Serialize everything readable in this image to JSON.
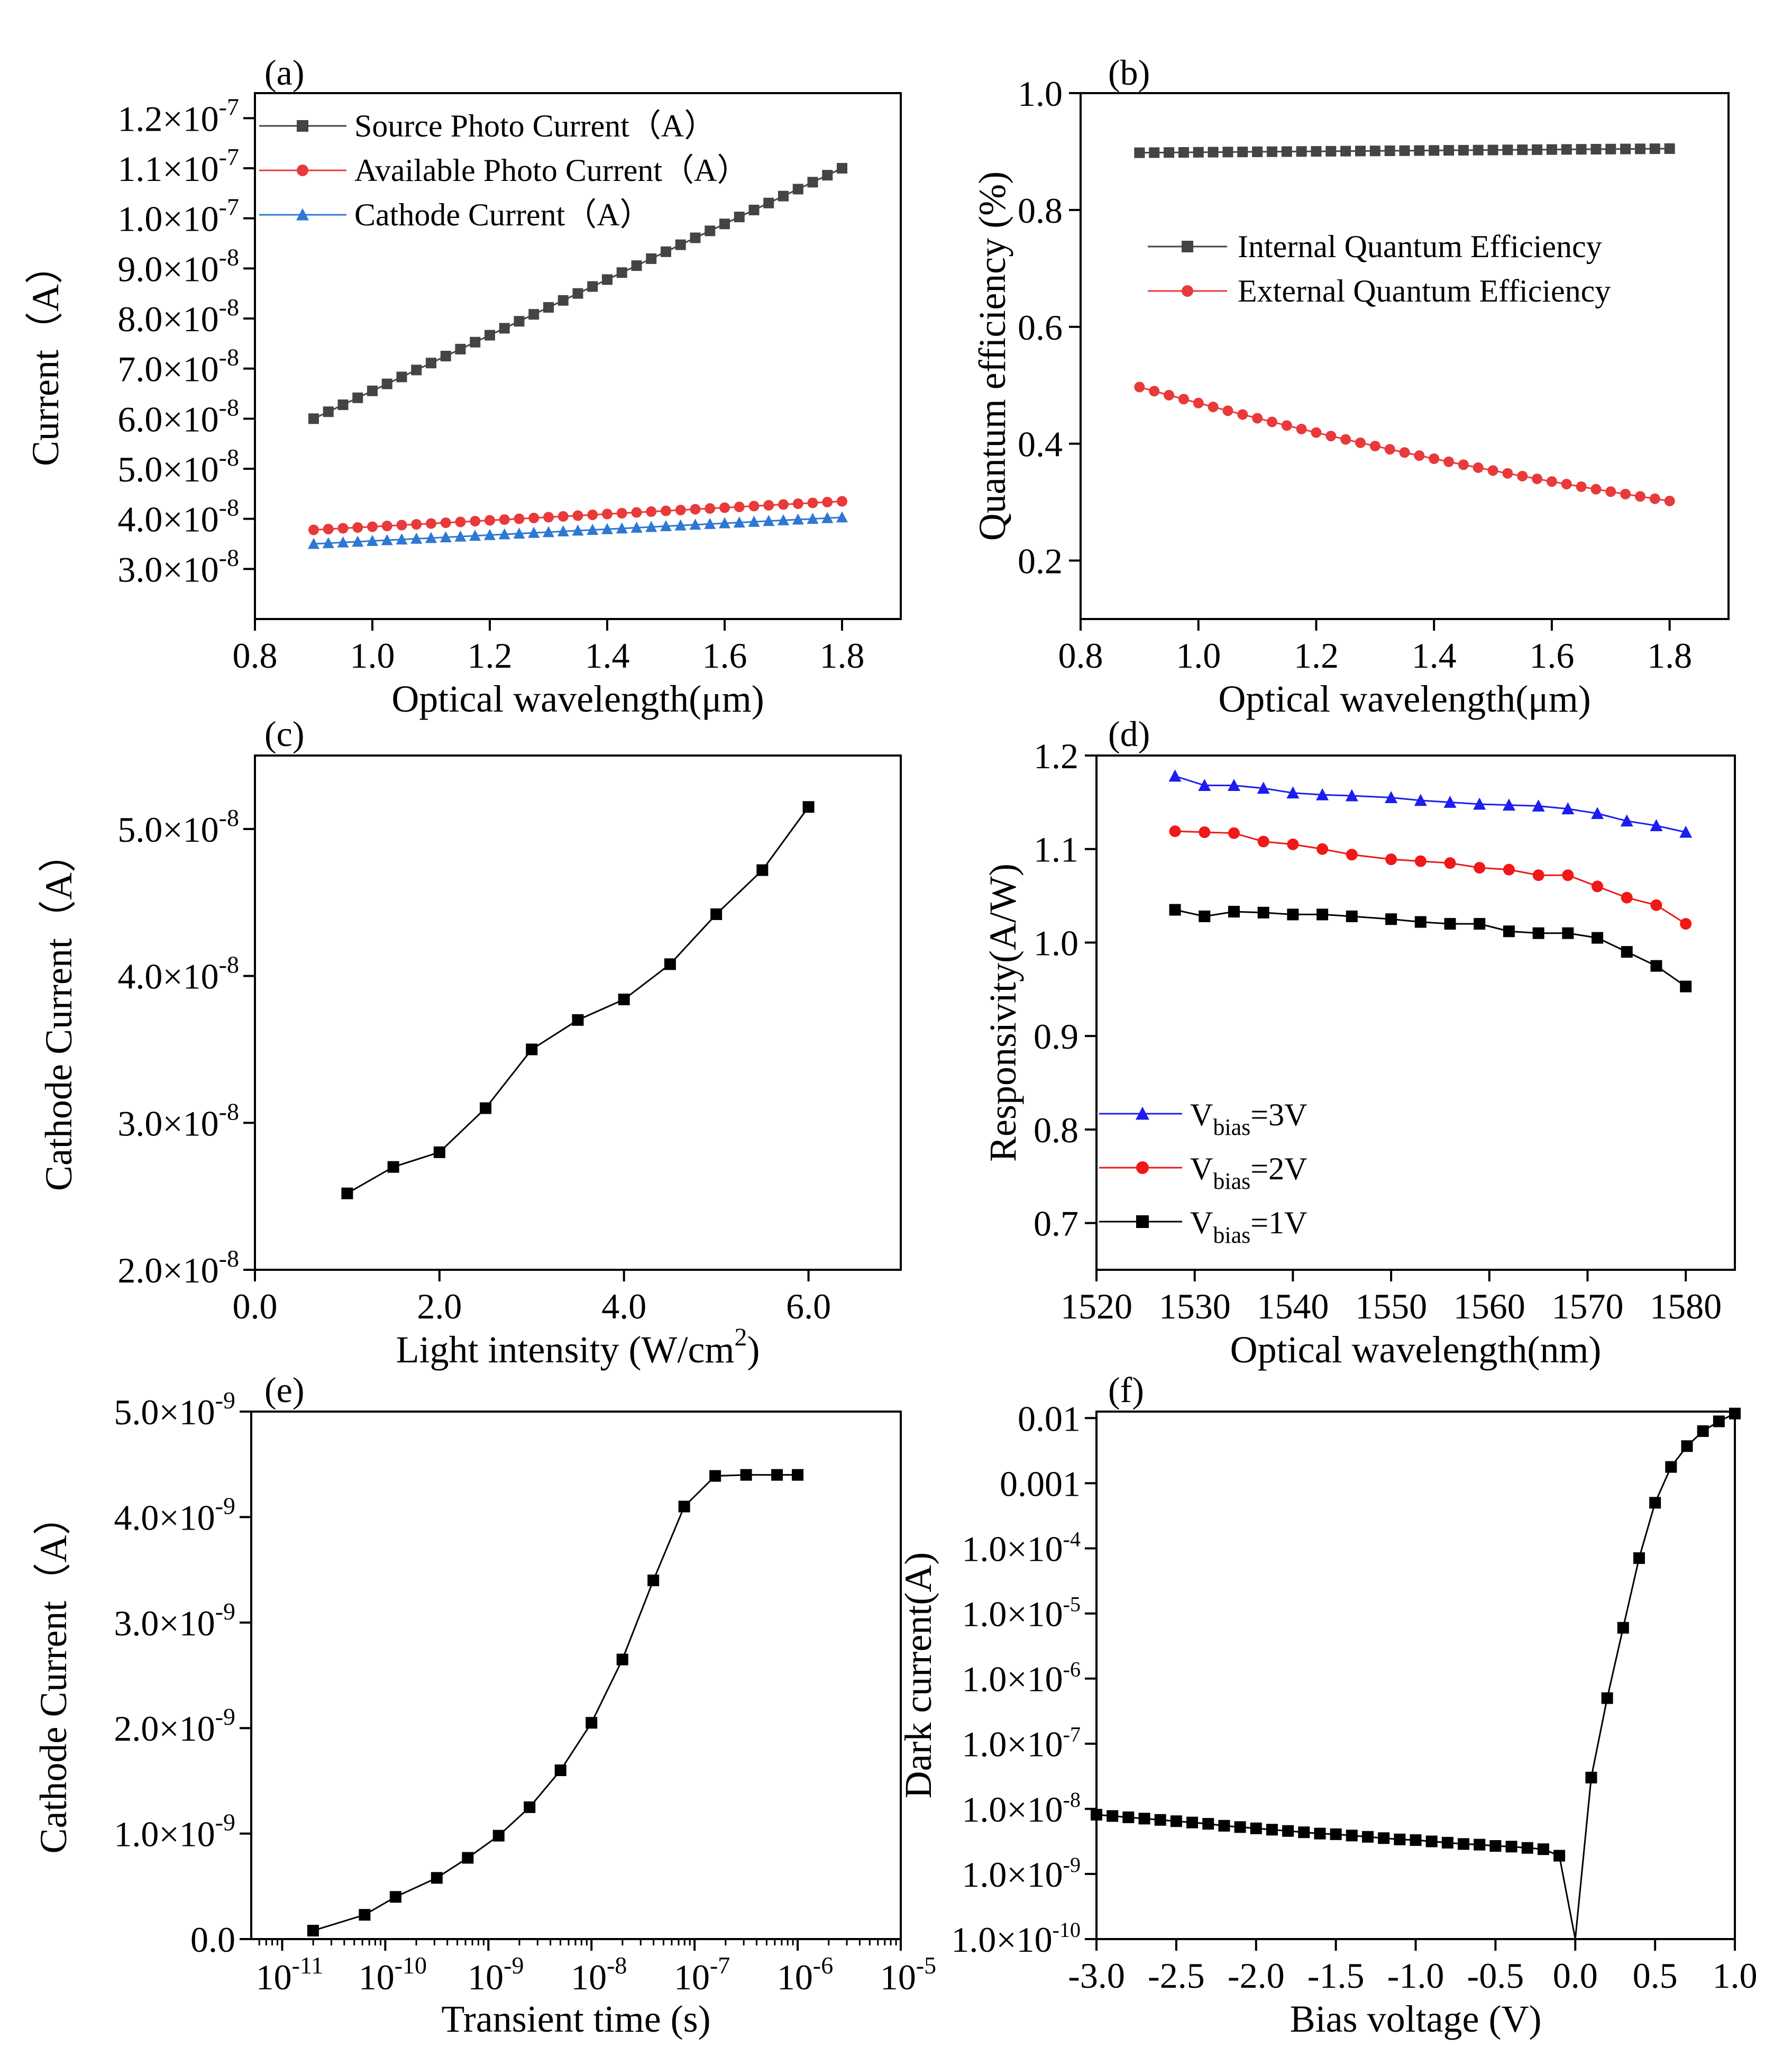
{
  "figure": {
    "panels": [
      "(a)",
      "(b)",
      "(c)",
      "(d)",
      "(e)",
      "(f)"
    ]
  },
  "chart_data": [
    {
      "id": "a",
      "panel_label": "(a)",
      "type": "scatter",
      "xlabel": "Optical wavelength(μm)",
      "ylabel": "Current（A）",
      "xlim": [
        0.8,
        1.9
      ],
      "ylim": [
        2e-08,
        1.25e-07
      ],
      "x_ticks": [
        0.8,
        1.0,
        1.2,
        1.4,
        1.6,
        1.8
      ],
      "x_tick_labels": [
        "0.8",
        "1.0",
        "1.2",
        "1.4",
        "1.6",
        "1.8"
      ],
      "y_ticks": [
        3e-08,
        4e-08,
        5e-08,
        6e-08,
        7e-08,
        8e-08,
        9e-08,
        1e-07,
        1.1e-07,
        1.2e-07
      ],
      "y_tick_mantissa": [
        "3.0",
        "4.0",
        "5.0",
        "6.0",
        "7.0",
        "8.0",
        "9.0",
        "1.0",
        "1.1",
        "1.2"
      ],
      "y_tick_exp": [
        "-8",
        "-8",
        "-8",
        "-8",
        "-8",
        "-8",
        "-8",
        "-7",
        "-7",
        "-7"
      ],
      "legend_position": "top-left",
      "series": [
        {
          "name": "Source Photo Current（A）",
          "color": "#444444",
          "marker": "square",
          "x_start": 0.9,
          "x_end": 1.8,
          "n_points": 37,
          "y_start": 6e-08,
          "y_end": 1.1e-07
        },
        {
          "name": "Available Photo Current（A）",
          "color": "#e8393b",
          "marker": "circle",
          "x_start": 0.9,
          "x_end": 1.8,
          "n_points": 37,
          "y_start": 3.78e-08,
          "y_end": 4.35e-08
        },
        {
          "name": "Cathode Current（A）",
          "color": "#2e78d2",
          "marker": "triangle",
          "x_start": 0.9,
          "x_end": 1.8,
          "n_points": 37,
          "y_start": 3.5e-08,
          "y_end": 4.03e-08
        }
      ]
    },
    {
      "id": "b",
      "panel_label": "(b)",
      "type": "scatter",
      "xlabel": "Optical wavelength(μm)",
      "ylabel": "Quantum efficiency (%)",
      "xlim": [
        0.8,
        1.9
      ],
      "ylim": [
        0.1,
        1.0
      ],
      "x_ticks": [
        0.8,
        1.0,
        1.2,
        1.4,
        1.6,
        1.8
      ],
      "x_tick_labels": [
        "0.8",
        "1.0",
        "1.2",
        "1.4",
        "1.6",
        "1.8"
      ],
      "y_ticks": [
        0.2,
        0.4,
        0.6,
        0.8,
        1.0
      ],
      "y_tick_labels": [
        "0.2",
        "0.4",
        "0.6",
        "0.8",
        "1.0"
      ],
      "legend_position": "center-right",
      "series": [
        {
          "name": "Internal Quantum Efficiency",
          "color": "#444444",
          "marker": "square",
          "x_start": 0.9,
          "x_end": 1.8,
          "n_points": 37,
          "y_start": 0.898,
          "y_end": 0.905
        },
        {
          "name": "External Quantum Efficiency",
          "color": "#e8393b",
          "marker": "circle",
          "x_start": 0.9,
          "x_end": 1.8,
          "n_points": 37,
          "y_start": 0.497,
          "y_end": 0.302,
          "y_mid": 0.385
        }
      ]
    },
    {
      "id": "c",
      "panel_label": "(c)",
      "type": "line",
      "xlabel": "Light intensity (W/cm",
      "xlabel_sup": "2",
      "xlabel_end": ")",
      "ylabel": "Cathode Current（A）",
      "xlim": [
        0.0,
        7.0
      ],
      "ylim": [
        2e-08,
        5.5e-08
      ],
      "x_ticks": [
        0.0,
        2.0,
        4.0,
        6.0
      ],
      "x_tick_labels": [
        "0.0",
        "2.0",
        "4.0",
        "6.0"
      ],
      "y_ticks": [
        2e-08,
        3e-08,
        4e-08,
        5e-08
      ],
      "y_tick_mantissa": [
        "2.0",
        "3.0",
        "4.0",
        "5.0"
      ],
      "y_tick_exp": [
        "-8",
        "-8",
        "-8",
        "-8"
      ],
      "series": [
        {
          "name": "Cathode Current",
          "color": "#000000",
          "marker": "square",
          "x": [
            1.0,
            1.5,
            2.0,
            2.5,
            3.0,
            3.5,
            4.0,
            4.5,
            5.0,
            5.5,
            6.0
          ],
          "y": [
            2.52e-08,
            2.7e-08,
            2.8e-08,
            3.1e-08,
            3.5e-08,
            3.7e-08,
            3.84e-08,
            4.08e-08,
            4.42e-08,
            4.72e-08,
            5.15e-08
          ]
        }
      ]
    },
    {
      "id": "d",
      "panel_label": "(d)",
      "type": "line",
      "xlabel": "Optical wavelength(nm)",
      "ylabel": "Responsivity(A/W)",
      "xlim": [
        1520,
        1585
      ],
      "ylim": [
        0.65,
        1.2
      ],
      "x_ticks": [
        1520,
        1530,
        1540,
        1550,
        1560,
        1570,
        1580
      ],
      "x_tick_labels": [
        "1520",
        "1530",
        "1540",
        "1550",
        "1560",
        "1570",
        "1580"
      ],
      "y_ticks": [
        0.7,
        0.8,
        0.9,
        1.0,
        1.1,
        1.2
      ],
      "y_tick_labels": [
        "0.7",
        "0.8",
        "0.9",
        "1.0",
        "1.1",
        "1.2"
      ],
      "legend_position": "bottom-left",
      "legend_prefix": "V",
      "legend_sub": "bias",
      "series": [
        {
          "name": "Vbias=3V",
          "legend_value": "=3V",
          "color": "#1d1df0",
          "marker": "triangle",
          "x": [
            1528,
            1531,
            1534,
            1537,
            1540,
            1543,
            1546,
            1550,
            1553,
            1556,
            1559,
            1562,
            1565,
            1568,
            1571,
            1574,
            1577,
            1580
          ],
          "y": [
            1.178,
            1.168,
            1.168,
            1.165,
            1.16,
            1.158,
            1.157,
            1.155,
            1.152,
            1.15,
            1.148,
            1.147,
            1.146,
            1.143,
            1.138,
            1.13,
            1.125,
            1.118
          ]
        },
        {
          "name": "Vbias=2V",
          "legend_value": "=2V",
          "color": "#f01818",
          "marker": "circle",
          "x": [
            1528,
            1531,
            1534,
            1537,
            1540,
            1543,
            1546,
            1550,
            1553,
            1556,
            1559,
            1562,
            1565,
            1568,
            1571,
            1574,
            1577,
            1580
          ],
          "y": [
            1.119,
            1.118,
            1.117,
            1.108,
            1.105,
            1.1,
            1.094,
            1.089,
            1.087,
            1.085,
            1.08,
            1.078,
            1.072,
            1.072,
            1.06,
            1.048,
            1.04,
            1.02
          ]
        },
        {
          "name": "Vbias=1V",
          "legend_value": "=1V",
          "color": "#000000",
          "marker": "square",
          "x": [
            1528,
            1531,
            1534,
            1537,
            1540,
            1543,
            1546,
            1550,
            1553,
            1556,
            1559,
            1562,
            1565,
            1568,
            1571,
            1574,
            1577,
            1580
          ],
          "y": [
            1.035,
            1.028,
            1.033,
            1.032,
            1.03,
            1.03,
            1.028,
            1.025,
            1.022,
            1.02,
            1.02,
            1.012,
            1.01,
            1.01,
            1.005,
            0.99,
            0.975,
            0.953
          ]
        }
      ]
    },
    {
      "id": "e",
      "panel_label": "(e)",
      "type": "line",
      "x_scale": "log",
      "xlabel": "Transient time (s)",
      "ylabel": "Cathode Current（A）",
      "xlim_exp": [
        -11.3,
        -5.0
      ],
      "ylim": [
        0.0,
        5e-09
      ],
      "x_tick_exps": [
        "-11",
        "-10",
        "-9",
        "-8",
        "-7",
        "-6",
        "-5"
      ],
      "y_ticks": [
        0.0,
        1e-09,
        2e-09,
        3e-09,
        4e-09,
        5e-09
      ],
      "y_tick_mantissa": [
        "0.0",
        "1.0",
        "2.0",
        "3.0",
        "4.0",
        "5.0"
      ],
      "y_tick_exp": [
        "",
        "-9",
        "-9",
        "-9",
        "-9",
        "-9"
      ],
      "series": [
        {
          "name": "Cathode Current",
          "color": "#000000",
          "marker": "square",
          "log10_x": [
            -10.7,
            -10.2,
            -9.9,
            -9.5,
            -9.2,
            -8.9,
            -8.6,
            -8.3,
            -8.0,
            -7.7,
            -7.4,
            -7.1,
            -6.8,
            -6.5,
            -6.2,
            -6.0
          ],
          "y": [
            8e-11,
            2.3e-10,
            4e-10,
            5.8e-10,
            7.7e-10,
            9.8e-10,
            1.25e-09,
            1.6e-09,
            2.05e-09,
            2.65e-09,
            3.4e-09,
            4.1e-09,
            4.39e-09,
            4.4e-09,
            4.4e-09,
            4.4e-09
          ]
        }
      ]
    },
    {
      "id": "f",
      "panel_label": "(f)",
      "type": "line",
      "y_scale": "log",
      "xlabel": "Bias voltage (V)",
      "ylabel": "Dark current(A)",
      "xlim": [
        -3.0,
        1.0
      ],
      "ylim_exp": [
        -10.0,
        -1.9
      ],
      "x_ticks": [
        -3.0,
        -2.5,
        -2.0,
        -1.5,
        -1.0,
        -0.5,
        0.0,
        0.5,
        1.0
      ],
      "x_tick_labels": [
        "-3.0",
        "-2.5",
        "-2.0",
        "-1.5",
        "-1.0",
        "-0.5",
        "0.0",
        "0.5",
        "1.0"
      ],
      "y_tick_exps": [
        -10,
        -9,
        -8,
        -7,
        -6,
        -5,
        -4,
        -3,
        -2
      ],
      "y_tick_labels": [
        "1.0×10",
        "1.0×10",
        "1.0×10",
        "1.0×10",
        "1.0×10",
        "1.0×10",
        "1.0×10",
        "0.001",
        "0.01"
      ],
      "y_tick_sup": [
        "-10",
        "-9",
        "-8",
        "-7",
        "-6",
        "-5",
        "-4",
        "",
        ""
      ],
      "series": [
        {
          "name": "Dark current",
          "color": "#000000",
          "marker": "square",
          "x": [
            -3.0,
            -2.9,
            -2.8,
            -2.7,
            -2.6,
            -2.5,
            -2.4,
            -2.3,
            -2.2,
            -2.1,
            -2.0,
            -1.9,
            -1.8,
            -1.7,
            -1.6,
            -1.5,
            -1.4,
            -1.3,
            -1.2,
            -1.1,
            -1.0,
            -0.9,
            -0.8,
            -0.7,
            -0.6,
            -0.5,
            -0.4,
            -0.3,
            -0.2,
            -0.1,
            0.0,
            0.1,
            0.2,
            0.3,
            0.4,
            0.5,
            0.6,
            0.7,
            0.8,
            0.9,
            1.0
          ],
          "log10_y": [
            -8.09,
            -8.11,
            -8.13,
            -8.15,
            -8.17,
            -8.19,
            -8.21,
            -8.23,
            -8.26,
            -8.28,
            -8.3,
            -8.32,
            -8.34,
            -8.36,
            -8.38,
            -8.39,
            -8.41,
            -8.43,
            -8.45,
            -8.47,
            -8.48,
            -8.5,
            -8.52,
            -8.54,
            -8.55,
            -8.57,
            -8.58,
            -8.6,
            -8.62,
            -8.72,
            -10.0,
            -7.52,
            -6.3,
            -5.22,
            -4.15,
            -3.3,
            -2.75,
            -2.43,
            -2.2,
            -2.05,
            -1.93
          ],
          "marker_skip": [
            30
          ]
        }
      ]
    }
  ]
}
